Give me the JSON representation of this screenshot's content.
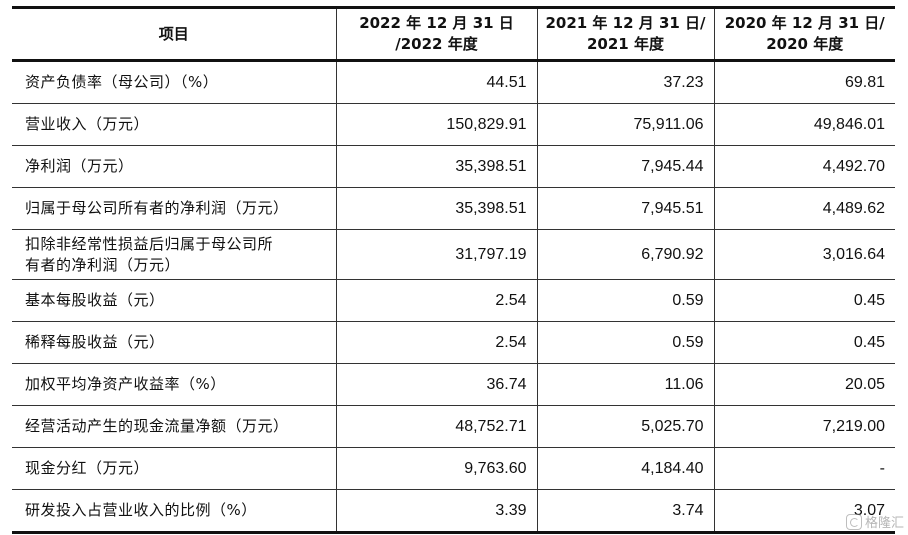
{
  "table": {
    "headers": [
      [
        "项目"
      ],
      [
        "2022 年 12 月 31 日",
        "/2022 年度"
      ],
      [
        "2021 年 12 月 31 日/",
        "2021 年度"
      ],
      [
        "2020 年 12 月 31 日/",
        "2020 年度"
      ]
    ],
    "rows": [
      {
        "label": [
          "资产负债率（母公司）（%）"
        ],
        "values": [
          "44.51",
          "37.23",
          "69.81"
        ]
      },
      {
        "label": [
          "营业收入（万元）"
        ],
        "values": [
          "150,829.91",
          "75,911.06",
          "49,846.01"
        ]
      },
      {
        "label": [
          "净利润（万元）"
        ],
        "values": [
          "35,398.51",
          "7,945.44",
          "4,492.70"
        ]
      },
      {
        "label": [
          "归属于母公司所有者的净利润（万元）"
        ],
        "values": [
          "35,398.51",
          "7,945.51",
          "4,489.62"
        ]
      },
      {
        "label": [
          "扣除非经常性损益后归属于母公司所",
          "有者的净利润（万元）"
        ],
        "values": [
          "31,797.19",
          "6,790.92",
          "3,016.64"
        ]
      },
      {
        "label": [
          "基本每股收益（元）"
        ],
        "values": [
          "2.54",
          "0.59",
          "0.45"
        ]
      },
      {
        "label": [
          "稀释每股收益（元）"
        ],
        "values": [
          "2.54",
          "0.59",
          "0.45"
        ]
      },
      {
        "label": [
          "加权平均净资产收益率（%）"
        ],
        "values": [
          "36.74",
          "11.06",
          "20.05"
        ]
      },
      {
        "label": [
          "经营活动产生的现金流量净额（万元）"
        ],
        "values": [
          "48,752.71",
          "5,025.70",
          "7,219.00"
        ]
      },
      {
        "label": [
          "现金分红（万元）"
        ],
        "values": [
          "9,763.60",
          "4,184.40",
          "-"
        ]
      },
      {
        "label": [
          "研发投入占营业收入的比例（%）"
        ],
        "values": [
          "3.39",
          "3.74",
          "3.07"
        ]
      }
    ]
  },
  "watermark": {
    "text": "格隆汇",
    "icon": "gelonghui-logo-icon"
  }
}
